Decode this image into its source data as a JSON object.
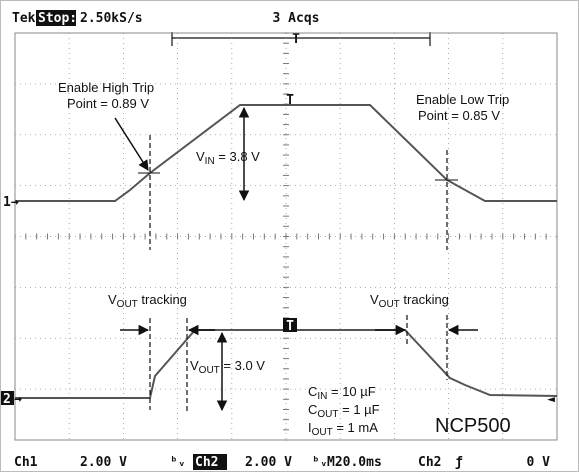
{
  "header": {
    "brand": "Tek",
    "state": "Stop:",
    "rate": "2.50kS/s",
    "acqs": "3 Acqs",
    "trigger_mark": "T"
  },
  "markers": {
    "ch1": "1",
    "ch2": "2",
    "trig1": "T",
    "trig2": "T"
  },
  "annotations": {
    "high_trip": [
      "Enable High Trip",
      "Point = 0.89 V"
    ],
    "low_trip": [
      "Enable Low Trip",
      "Point = 0.85 V"
    ],
    "vin": {
      "main": "V",
      "sub": "IN",
      "rest": " = 3.8 V"
    },
    "vout": {
      "main": "V",
      "sub": "OUT",
      "rest": " = 3.0 V"
    },
    "tracking_left": {
      "main": "V",
      "sub": "OUT",
      "rest": " tracking"
    },
    "tracking_right": {
      "main": "V",
      "sub": "OUT",
      "rest": " tracking"
    },
    "cin": {
      "main": "C",
      "sub": "IN",
      "rest": " = 10 µF"
    },
    "cout": {
      "main": "C",
      "sub": "OUT",
      "rest": " = 1 µF"
    },
    "iout": {
      "main": "I",
      "sub": "OUT",
      "rest": " = 1 mA"
    },
    "part": "NCP500"
  },
  "footer": {
    "ch1": "Ch1",
    "ch1_scale": "2.00 V",
    "ch2": "Ch2",
    "ch2_scale": "2.00 V",
    "time": "M20.0ms",
    "trig_src": "Ch2",
    "trig_level": "0 V"
  }
}
